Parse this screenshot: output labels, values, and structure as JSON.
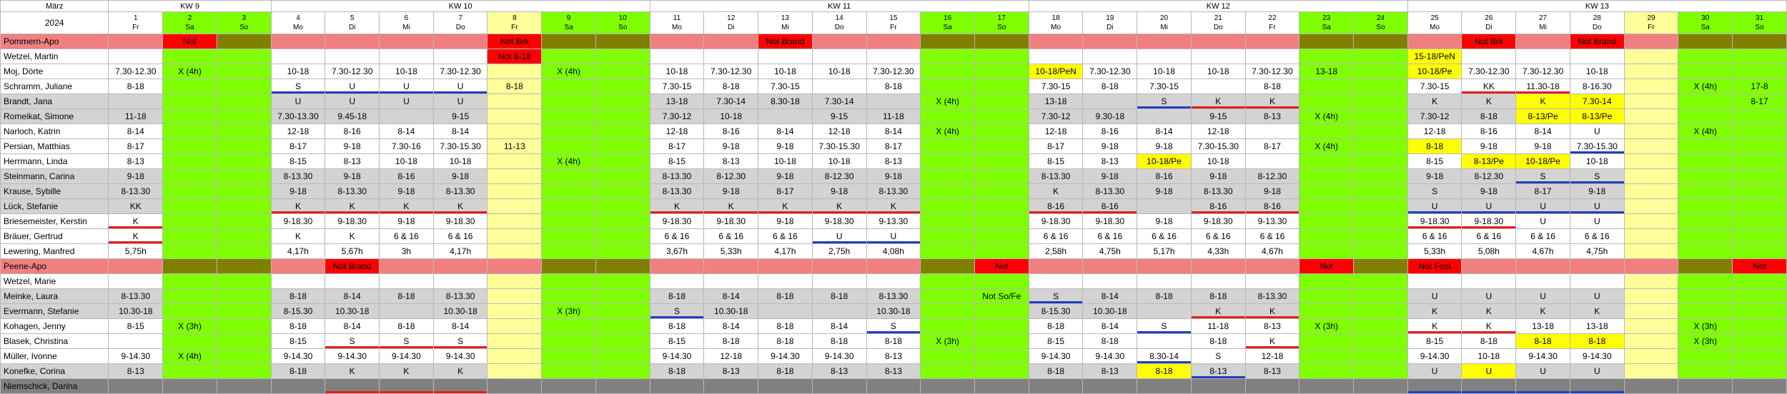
{
  "header": {
    "month": "März",
    "year": "2024",
    "weeks": [
      {
        "label": "KW 9",
        "span": 3
      },
      {
        "label": "KW 10",
        "span": 7
      },
      {
        "label": "KW 11",
        "span": 7
      },
      {
        "label": "KW 12",
        "span": 7
      },
      {
        "label": "KW 13",
        "span": 7
      }
    ],
    "days": [
      {
        "n": "1",
        "d": "Fr"
      },
      {
        "n": "2",
        "d": "Sa"
      },
      {
        "n": "3",
        "d": "So"
      },
      {
        "n": "4",
        "d": "Mo"
      },
      {
        "n": "5",
        "d": "Di"
      },
      {
        "n": "6",
        "d": "Mi"
      },
      {
        "n": "7",
        "d": "Do"
      },
      {
        "n": "8",
        "d": "Fr"
      },
      {
        "n": "9",
        "d": "Sa"
      },
      {
        "n": "10",
        "d": "So"
      },
      {
        "n": "11",
        "d": "Mo"
      },
      {
        "n": "12",
        "d": "Di"
      },
      {
        "n": "13",
        "d": "Mi"
      },
      {
        "n": "14",
        "d": "Do"
      },
      {
        "n": "15",
        "d": "Fr"
      },
      {
        "n": "16",
        "d": "Sa"
      },
      {
        "n": "17",
        "d": "So"
      },
      {
        "n": "18",
        "d": "Mo"
      },
      {
        "n": "19",
        "d": "Di"
      },
      {
        "n": "20",
        "d": "Mi"
      },
      {
        "n": "21",
        "d": "Do"
      },
      {
        "n": "22",
        "d": "Fr"
      },
      {
        "n": "23",
        "d": "Sa"
      },
      {
        "n": "24",
        "d": "So"
      },
      {
        "n": "25",
        "d": "Mo"
      },
      {
        "n": "26",
        "d": "Di"
      },
      {
        "n": "27",
        "d": "Mi"
      },
      {
        "n": "28",
        "d": "Do"
      },
      {
        "n": "29",
        "d": "Fr"
      },
      {
        "n": "30",
        "d": "Sa"
      },
      {
        "n": "31",
        "d": "So"
      }
    ]
  },
  "colors": {
    "weekday": "#ffffff",
    "friday_holiday": "#ffff99",
    "weekend": "#7fff00",
    "section_band": "#f08080",
    "highlight": "#ffff00",
    "note_red": "#ff0000",
    "underline_blue": "#1f3fbf",
    "underline_red": "#e02020"
  },
  "rows": [
    {
      "name": "Pommern-Apo",
      "type": "band",
      "cells": {
        "2": "Not",
        "13": "Not Brand",
        "26": "Not Brk",
        "28": "Not Brand",
        "8": "Not Brk"
      }
    },
    {
      "name": "Wetzel, Martin",
      "type": "white",
      "cells": {
        "8": "Not 8-18",
        "25": "15-18/PeN"
      }
    },
    {
      "name": "Moj, Dörte",
      "type": "white",
      "cells": {
        "1": "7.30-12.30",
        "2": "X (4h)",
        "4": "10-18",
        "5": "7.30-12.30",
        "6": "10-18",
        "7": "7.30-12.30",
        "9": "X (4h)",
        "11": "10-18",
        "12": "7.30-12.30",
        "13": "10-18",
        "14": "10-18",
        "15": "7.30-12.30",
        "18": "10-18/PeN",
        "19": "7.30-12.30",
        "20": "10-18",
        "21": "10-18",
        "22": "7.30-12.30",
        "23": "13-18",
        "25": "10-18/Pe",
        "26": "7.30-12.30",
        "27": "7.30-12.30",
        "28": "10-18"
      }
    },
    {
      "name": "Schramm, Juliane",
      "type": "white",
      "cells": {
        "1": "8-18",
        "4": "S",
        "5": "U",
        "6": "U",
        "7": "U",
        "8": "8-18",
        "11": "7.30-15",
        "12": "8-18",
        "13": "7.30-15",
        "15": "8-18",
        "18": "7.30-15",
        "19": "8-18",
        "20": "7.30-15",
        "22": "8-18",
        "25": "7.30-15",
        "26": "KK",
        "27": "11.30-18",
        "28": "8-16.30",
        "30": "X (4h)",
        "31": "17-8"
      }
    },
    {
      "name": "Brandt, Jana",
      "type": "grey",
      "cells": {
        "4": "U",
        "5": "U",
        "6": "U",
        "7": "U",
        "11": "13-18",
        "12": "7.30-14",
        "13": "8.30-18",
        "14": "7.30-14",
        "16": "X (4h)",
        "18": "13-18",
        "20": "S",
        "21": "K",
        "22": "K",
        "25": "K",
        "26": "K",
        "27": "K",
        "28": "7.30-14",
        "31": "8-17"
      }
    },
    {
      "name": "Romeikat, Simone",
      "type": "grey",
      "cells": {
        "1": "11-18",
        "4": "7.30-13.30",
        "5": "9.45-18",
        "7": "9-15",
        "11": "7.30-12",
        "12": "10-18",
        "14": "9-15",
        "15": "11-18",
        "18": "7.30-12",
        "19": "9.30-18",
        "21": "9-15",
        "22": "8-13",
        "23": "X (4h)",
        "25": "7.30-12",
        "26": "8-18",
        "27": "8-13/Pe",
        "28": "8-13/Pe"
      }
    },
    {
      "name": "Narloch, Katrin",
      "type": "white",
      "cells": {
        "1": "8-14",
        "4": "12-18",
        "5": "8-16",
        "6": "8-14",
        "7": "8-14",
        "11": "12-18",
        "12": "8-16",
        "13": "8-14",
        "14": "12-18",
        "15": "8-14",
        "16": "X (4h)",
        "18": "12-18",
        "19": "8-16",
        "20": "8-14",
        "21": "12-18",
        "25": "12-18",
        "26": "8-16",
        "27": "8-14",
        "28": "U",
        "30": "X (4h)"
      }
    },
    {
      "name": "Persian, Matthias",
      "type": "white",
      "cells": {
        "1": "8-17",
        "4": "8-17",
        "5": "9-18",
        "6": "7.30-16",
        "7": "7.30-15.30",
        "8": "11-13",
        "11": "8-17",
        "12": "9-18",
        "13": "9-18",
        "14": "7.30-15.30",
        "15": "8-17",
        "18": "8-17",
        "19": "9-18",
        "20": "9-18",
        "21": "7.30-15.30",
        "22": "8-17",
        "23": "X (4h)",
        "25": "8-18",
        "26": "9-18",
        "27": "9-18",
        "28": "7.30-15.30"
      }
    },
    {
      "name": "Herrmann, Linda",
      "type": "white",
      "cells": {
        "1": "8-13",
        "4": "8-15",
        "5": "8-13",
        "6": "10-18",
        "7": "10-18",
        "9": "X (4h)",
        "11": "8-15",
        "12": "8-13",
        "13": "10-18",
        "14": "10-18",
        "15": "8-13",
        "18": "8-15",
        "19": "8-13",
        "20": "10-18/Pe",
        "21": "10-18",
        "25": "8-15",
        "26": "8-13/Pe",
        "27": "10-18/Pe",
        "28": "10-18"
      }
    },
    {
      "name": "Steinmann, Carina",
      "type": "grey",
      "cells": {
        "1": "9-18",
        "4": "8-13.30",
        "5": "9-18",
        "6": "8-16",
        "7": "9-18",
        "11": "8-13.30",
        "12": "8-12.30",
        "13": "9-18",
        "14": "8-12.30",
        "15": "9-18",
        "18": "8-13.30",
        "19": "9-18",
        "20": "8-16",
        "21": "9-18",
        "22": "8-12.30",
        "25": "9-18",
        "26": "8-12.30",
        "27": "S",
        "28": "S"
      }
    },
    {
      "name": "Krause, Sybille",
      "type": "grey",
      "cells": {
        "1": "8-13.30",
        "4": "9-18",
        "5": "8-13.30",
        "6": "9-18",
        "7": "8-13.30",
        "11": "8-13.30",
        "12": "9-18",
        "13": "8-17",
        "14": "9-18",
        "15": "8-13.30",
        "18": "K",
        "19": "8-13.30",
        "20": "9-18",
        "21": "8-13.30",
        "22": "9-18",
        "25": "S",
        "26": "9-18",
        "27": "8-17",
        "28": "9-18"
      }
    },
    {
      "name": "Lück, Stefanie",
      "type": "grey",
      "cells": {
        "1": "KK",
        "4": "K",
        "5": "K",
        "6": "K",
        "7": "K",
        "11": "K",
        "12": "K",
        "13": "K",
        "14": "K",
        "15": "K",
        "18": "8-16",
        "19": "8-16",
        "21": "8-16",
        "22": "8-16",
        "25": "U",
        "26": "U",
        "27": "U",
        "28": "U"
      }
    },
    {
      "name": "Briesemeister, Kerstin",
      "type": "white",
      "cells": {
        "1": "K",
        "4": "9-18.30",
        "5": "9-18.30",
        "6": "9-18",
        "7": "9-18.30",
        "11": "9-18.30",
        "12": "9-18.30",
        "13": "9-18",
        "14": "9-18.30",
        "15": "9-13.30",
        "18": "9-18.30",
        "19": "9-18.30",
        "20": "9-18",
        "21": "9-18.30",
        "22": "9-13.30",
        "25": "9-18.30",
        "26": "9-18.30",
        "27": "U",
        "28": "U"
      }
    },
    {
      "name": "Bräuer, Gertrud",
      "type": "white",
      "cells": {
        "1": "K",
        "4": "K",
        "5": "K",
        "6": "6 & 16",
        "7": "6 & 16",
        "11": "6 & 16",
        "12": "6 & 16",
        "13": "6 & 16",
        "14": "U",
        "15": "U",
        "18": "6 & 16",
        "19": "6 & 16",
        "20": "6 & 16",
        "21": "6 & 16",
        "22": "6 & 16",
        "25": "6 & 16",
        "26": "6 & 16",
        "27": "6 & 16",
        "28": "6 & 16"
      }
    },
    {
      "name": "Lewering, Manfred",
      "type": "white",
      "cells": {
        "1": "5,75h",
        "4": "4,17h",
        "5": "5,67h",
        "6": "3h",
        "7": "4,17h",
        "11": "3,67h",
        "12": "5,33h",
        "13": "4,17h",
        "14": "2,75h",
        "15": "4,08h",
        "18": "2,58h",
        "19": "4,75h",
        "20": "5,17h",
        "21": "4,33h",
        "22": "4,67h",
        "25": "5,33h",
        "26": "5,08h",
        "27": "4,67h",
        "28": "4,75h"
      }
    },
    {
      "name": "Peene-Apo",
      "type": "band",
      "cells": {
        "5": "Not Brand",
        "17": "Not",
        "23": "Not",
        "25": "Not Fost",
        "31": "Not"
      }
    },
    {
      "name": "Wetzel, Marie",
      "type": "white",
      "cells": {}
    },
    {
      "name": "Meinke, Laura",
      "type": "grey",
      "cells": {
        "1": "8-13.30",
        "4": "8-18",
        "5": "8-14",
        "6": "8-18",
        "7": "8-13.30",
        "11": "8-18",
        "12": "8-14",
        "13": "8-18",
        "14": "8-18",
        "15": "8-13.30",
        "17": "Not So/Fe",
        "18": "S",
        "19": "8-14",
        "20": "8-18",
        "21": "8-18",
        "22": "8-13.30",
        "25": "U",
        "26": "U",
        "27": "U",
        "28": "U"
      }
    },
    {
      "name": "Evermann, Stefanie",
      "type": "grey",
      "cells": {
        "1": "10.30-18",
        "4": "8-15.30",
        "5": "10.30-18",
        "7": "10.30-18",
        "9": "X (3h)",
        "11": "S",
        "12": "10.30-18",
        "15": "10.30-18",
        "18": "8-15.30",
        "19": "10.30-18",
        "21": "K",
        "22": "K",
        "25": "K",
        "26": "K",
        "27": "K",
        "28": "K"
      }
    },
    {
      "name": "Kohagen, Jenny",
      "type": "white",
      "cells": {
        "1": "8-15",
        "2": "X (3h)",
        "4": "8-18",
        "5": "8-14",
        "6": "8-18",
        "7": "8-14",
        "11": "8-18",
        "12": "8-14",
        "13": "8-18",
        "14": "8-14",
        "15": "S",
        "18": "8-18",
        "19": "8-14",
        "20": "S",
        "21": "11-18",
        "22": "8-13",
        "23": "X (3h)",
        "25": "K",
        "26": "K",
        "27": "13-18",
        "28": "13-18",
        "30": "X (3h)"
      }
    },
    {
      "name": "Blasek, Christina",
      "type": "white",
      "cells": {
        "4": "8-15",
        "5": "S",
        "6": "S",
        "7": "S",
        "11": "8-15",
        "12": "8-18",
        "13": "8-18",
        "14": "8-18",
        "15": "8-18",
        "16": "X (3h)",
        "18": "8-15",
        "19": "8-18",
        "21": "8-18",
        "22": "K",
        "25": "8-15",
        "26": "8-18",
        "27": "8-18",
        "28": "8-18",
        "30": "X (3h)"
      }
    },
    {
      "name": "Müller, Ivonne",
      "type": "white",
      "cells": {
        "1": "9-14.30",
        "2": "X (4h)",
        "4": "9-14.30",
        "5": "9-14.30",
        "6": "9-14.30",
        "7": "9-14.30",
        "11": "9-14.30",
        "12": "12-18",
        "13": "9-14.30",
        "14": "9-14.30",
        "15": "8-13",
        "18": "9-14.30",
        "19": "9-14.30",
        "20": "8.30-14",
        "21": "S",
        "22": "12-18",
        "25": "9-14.30",
        "26": "10-18",
        "27": "9-14.30",
        "28": "9-14.30"
      }
    },
    {
      "name": "Konefke, Corina",
      "type": "grey",
      "cells": {
        "1": "8-13",
        "4": "8-18",
        "5": "K",
        "6": "K",
        "7": "K",
        "11": "8-18",
        "12": "8-13",
        "13": "8-18",
        "14": "8-13",
        "15": "8-13",
        "18": "8-18",
        "19": "8-13",
        "20": "8-18",
        "21": "8-13",
        "22": "8-13",
        "25": "U",
        "26": "U",
        "27": "U",
        "28": "U"
      }
    },
    {
      "name": "Niemschick, Darina",
      "type": "dark",
      "cells": {}
    }
  ]
}
